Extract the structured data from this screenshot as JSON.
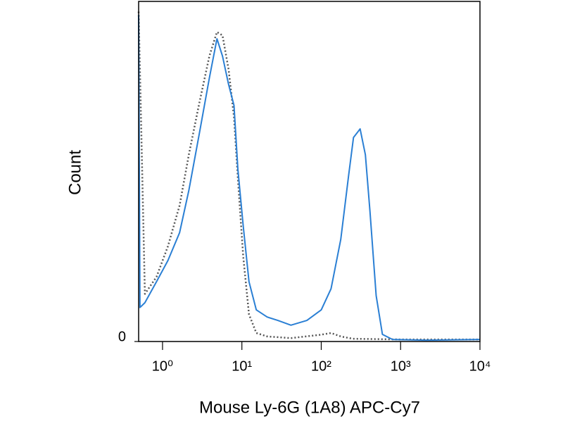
{
  "chart_data": {
    "type": "line",
    "x_label": "Mouse Ly-6G (1A8) APC-Cy7",
    "y_label": "Count",
    "xscale": "log",
    "xlim": [
      0.5,
      10000
    ],
    "xticks": [
      {
        "value": 1,
        "label": "10⁰"
      },
      {
        "value": 10,
        "label": "10¹"
      },
      {
        "value": 100,
        "label": "10²"
      },
      {
        "value": 1000,
        "label": "10³"
      },
      {
        "value": 10000,
        "label": "10⁴"
      }
    ],
    "ylim": [
      0,
      100
    ],
    "yticks": [
      0
    ],
    "series": [
      {
        "color": "#555555",
        "dashed": true,
        "x": [
          0.5,
          0.6,
          0.84,
          1.17,
          1.64,
          2.15,
          2.9,
          3.9,
          4.85,
          5.7,
          6.8,
          7.95,
          8.9,
          10.4,
          12.3,
          15.2,
          20.8,
          41.5,
          100,
          133,
          176,
          250,
          1000,
          10000
        ],
        "values": [
          97,
          14,
          19,
          28,
          40,
          55,
          70,
          84,
          91,
          90,
          80,
          66,
          48,
          25,
          8,
          2.5,
          1.5,
          1,
          2,
          2.5,
          1.5,
          0.8,
          0.6,
          0.6
        ]
      },
      {
        "color": "#2a7fd4",
        "dashed": false,
        "x": [
          0.5,
          0.52,
          0.6,
          0.84,
          1.17,
          1.64,
          2.15,
          2.9,
          3.9,
          4.85,
          5.7,
          6.8,
          7.95,
          8.9,
          10.4,
          12.3,
          15.2,
          20.8,
          28.4,
          41.5,
          66,
          100,
          133,
          176,
          221,
          255,
          309,
          360,
          411,
          492,
          590,
          790,
          2100,
          10000
        ],
        "values": [
          96,
          10,
          11.4,
          17.6,
          23.8,
          32,
          44.5,
          61,
          77.6,
          89,
          83.9,
          75.6,
          69.4,
          50.7,
          34,
          17.6,
          9.3,
          7.2,
          6.2,
          4.8,
          6.2,
          9.3,
          15.5,
          30,
          48.7,
          60,
          62.5,
          54.9,
          38.3,
          13.5,
          2.1,
          0.6,
          0.4,
          0.6
        ]
      }
    ]
  }
}
